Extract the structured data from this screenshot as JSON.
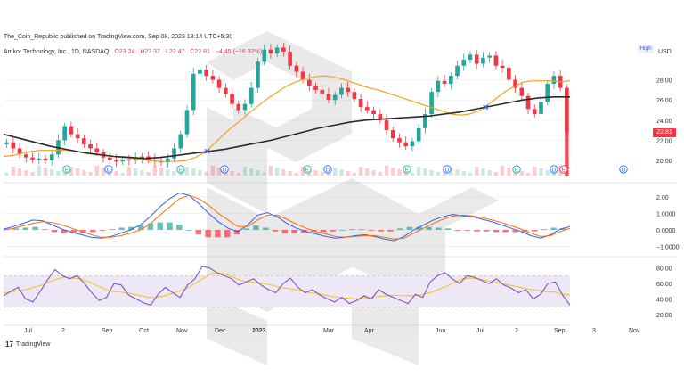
{
  "header": {
    "attribution": "The_Coin_Republic published on TradingView.com, Sep 08, 2023 13:14 UTC+5:30",
    "symbol": "Amkor Technology, Inc., 1D, NASDAQ",
    "open": "O23.24",
    "high": "H23.37",
    "low": "L22.47",
    "close": "C22.81",
    "change": "−4.45 (−16.32%)",
    "hl_badge": "High",
    "currency": "USD",
    "last_price": "22.81"
  },
  "branding": {
    "logo": "17",
    "name": "TradingView"
  },
  "colors": {
    "up": "#26a69a",
    "down": "#f23645",
    "ma_short": "#f7a01d",
    "ma_long": "#2b2b2b",
    "macd": "#2962ff",
    "signal": "#ff6d00",
    "rsi": "#7e57c2",
    "rsi_ma": "#f0c419",
    "rsi_band": "#ede7f6",
    "event": "#2962ff",
    "earnings": "#f23645"
  },
  "chart_data": [
    {
      "type": "candlestick",
      "series": [
        {
          "name": "price",
          "values": [
            21.8,
            21.2,
            20.6,
            20.3,
            20.1,
            20.2,
            20.0,
            20.6,
            22.0,
            23.4,
            22.6,
            22.2,
            21.6,
            21.2,
            20.8,
            20.3,
            20.0,
            19.9,
            20.1,
            20.0,
            20.2,
            20.4,
            20.1,
            19.9,
            19.8,
            20.2,
            21.2,
            22.6,
            25.0,
            28.6,
            29.0,
            28.4,
            28.0,
            27.2,
            26.6,
            25.6,
            25.0,
            25.6,
            27.2,
            29.8,
            31.0,
            30.6,
            31.2,
            30.8,
            29.4,
            28.8,
            28.0,
            27.4,
            27.0,
            26.6,
            26.0,
            26.5,
            27.2,
            26.8,
            26.1,
            25.3,
            25.0,
            24.6,
            24.0,
            23.0,
            22.2,
            21.8,
            21.4,
            21.9,
            23.2,
            24.6,
            26.8,
            27.9,
            27.6,
            28.4,
            29.4,
            30.0,
            30.5,
            29.6,
            30.2,
            30.4,
            29.4,
            29.2,
            28.0,
            27.2,
            26.4,
            25.1,
            24.6,
            25.8,
            27.6,
            28.4,
            27.2,
            22.81
          ]
        },
        {
          "name": "moving-average-short",
          "values": [
            20.4,
            20.5,
            20.7,
            20.9,
            21.0,
            21.0,
            21.0,
            21.0,
            20.9,
            20.7,
            20.6,
            20.5,
            20.4,
            20.3,
            20.2,
            20.1,
            20.0,
            19.9,
            19.9,
            19.9,
            20.0,
            20.3,
            20.8,
            21.6,
            22.5,
            23.3,
            24.0,
            24.8,
            25.5,
            26.2,
            26.8,
            27.4,
            27.8,
            28.1,
            28.3,
            28.4,
            28.3,
            28.1,
            27.8,
            27.5,
            27.2,
            27.0,
            26.7,
            26.4,
            26.1,
            25.8,
            25.5,
            25.2,
            24.9,
            24.6,
            24.5,
            24.6,
            24.9,
            25.5,
            26.2,
            26.9,
            27.4,
            27.8,
            27.9,
            27.9,
            27.9,
            27.8,
            27.9
          ]
        },
        {
          "name": "moving-average-long",
          "values": [
            22.6,
            22.2,
            21.8,
            21.4,
            21.1,
            20.8,
            20.6,
            20.4,
            20.3,
            20.2,
            20.3,
            20.5,
            20.7,
            20.9,
            21.1,
            21.4,
            21.7,
            22.0,
            22.4,
            22.8,
            23.2,
            23.5,
            23.8,
            24.0,
            24.1,
            24.2,
            24.3,
            24.4,
            24.6,
            24.8,
            25.1,
            25.4,
            25.7,
            26.0,
            26.2,
            26.3,
            26.3
          ]
        }
      ],
      "ylabel": "",
      "yticks": [
        20.0,
        22.0,
        24.0,
        26.0,
        28.0
      ],
      "ylim": [
        18.5,
        31.5
      ],
      "last_value": 22.81,
      "grid": true
    },
    {
      "type": "line",
      "series": [
        {
          "name": "macd",
          "values": [
            0.05,
            0.2,
            0.4,
            0.6,
            0.55,
            0.3,
            0.05,
            -0.15,
            -0.3,
            -0.45,
            -0.5,
            -0.4,
            -0.2,
            0.0,
            0.3,
            0.8,
            1.4,
            1.9,
            2.25,
            2.1,
            1.6,
            1.0,
            0.5,
            0.1,
            -0.1,
            0.3,
            0.9,
            1.05,
            0.8,
            0.4,
            0.1,
            -0.1,
            -0.25,
            -0.4,
            -0.5,
            -0.45,
            -0.35,
            -0.3,
            -0.4,
            -0.55,
            -0.65,
            -0.4,
            0.0,
            0.3,
            0.6,
            0.8,
            0.95,
            0.85,
            0.8,
            0.65,
            0.5,
            0.3,
            0.1,
            -0.1,
            -0.35,
            -0.5,
            -0.3,
            0.05,
            0.2
          ]
        },
        {
          "name": "signal",
          "values": [
            0.0,
            0.1,
            0.25,
            0.4,
            0.5,
            0.45,
            0.3,
            0.1,
            -0.1,
            -0.3,
            -0.45,
            -0.45,
            -0.35,
            -0.2,
            0.0,
            0.35,
            0.9,
            1.4,
            1.9,
            2.1,
            1.9,
            1.5,
            1.0,
            0.6,
            0.2,
            0.2,
            0.6,
            0.9,
            0.9,
            0.65,
            0.35,
            0.1,
            -0.1,
            -0.25,
            -0.4,
            -0.45,
            -0.4,
            -0.35,
            -0.35,
            -0.45,
            -0.55,
            -0.5,
            -0.2,
            0.1,
            0.4,
            0.65,
            0.85,
            0.9,
            0.85,
            0.75,
            0.6,
            0.45,
            0.25,
            0.05,
            -0.2,
            -0.4,
            -0.35,
            -0.1,
            0.1
          ]
        }
      ],
      "yticks": [
        2.0,
        1.0,
        0.0,
        -1.0
      ],
      "ytick_labels": [
        "2.00",
        "1.0000",
        "0.0000",
        "−1.0000"
      ],
      "ylim": [
        -1.3,
        2.6
      ],
      "grid": true
    },
    {
      "type": "line",
      "series": [
        {
          "name": "rsi",
          "values": [
            44,
            50,
            55,
            40,
            36,
            50,
            65,
            78,
            70,
            66,
            70,
            60,
            48,
            38,
            42,
            60,
            58,
            45,
            40,
            35,
            32,
            46,
            55,
            48,
            42,
            58,
            66,
            82,
            80,
            74,
            70,
            66,
            58,
            62,
            66,
            58,
            52,
            48,
            60,
            67,
            55,
            48,
            52,
            45,
            40,
            36,
            42,
            34,
            38,
            44,
            40,
            52,
            46,
            42,
            38,
            34,
            46,
            42,
            62,
            70,
            74,
            66,
            60,
            70,
            68,
            64,
            60,
            66,
            58,
            54,
            48,
            52,
            40,
            46,
            60,
            62,
            45,
            32
          ]
        },
        {
          "name": "rsi-ma",
          "values": [
            48,
            49,
            51,
            52,
            55,
            58,
            62,
            66,
            68,
            67,
            66,
            63,
            58,
            54,
            50,
            49,
            48,
            46,
            44,
            42,
            42,
            44,
            47,
            50,
            54,
            60,
            66,
            72,
            74,
            72,
            68,
            64,
            62,
            61,
            60,
            58,
            55,
            54,
            52,
            50,
            48,
            47,
            45,
            43,
            42,
            41,
            40,
            41,
            42,
            43,
            44,
            45,
            44,
            44,
            44,
            46,
            49,
            53,
            57,
            62,
            66,
            67,
            66,
            64,
            62,
            60,
            58,
            56,
            54,
            52,
            51,
            49,
            49,
            46,
            45
          ]
        }
      ],
      "yticks": [
        80.0,
        60.0,
        40.0,
        20.0
      ],
      "ylim": [
        14,
        90
      ],
      "band": [
        30,
        70
      ],
      "grid": true
    }
  ],
  "x_axis": {
    "tick_labels": [
      "Jul",
      "2",
      "Sep",
      "Oct",
      "Nov",
      "Dec",
      "2023",
      "Mar",
      "Apr",
      "Jun",
      "Jul",
      "2",
      "Sep",
      "3",
      "Nov"
    ]
  },
  "events": {
    "markers": [
      {
        "label": "E",
        "kind": "earnings-past"
      },
      {
        "label": "D",
        "kind": "dividend"
      },
      {
        "label": "E",
        "kind": "earnings-past"
      },
      {
        "label": "D",
        "kind": "dividend"
      },
      {
        "label": "E",
        "kind": "earnings-past"
      },
      {
        "label": "D",
        "kind": "dividend"
      },
      {
        "label": "E",
        "kind": "earnings-past"
      },
      {
        "label": "D",
        "kind": "dividend"
      },
      {
        "label": "E",
        "kind": "earnings-past"
      },
      {
        "label": "D",
        "kind": "dividend"
      },
      {
        "label": "E",
        "kind": "earnings-past"
      },
      {
        "label": "D",
        "kind": "dividend"
      },
      {
        "label": "E",
        "kind": "earnings-past"
      },
      {
        "label": "D",
        "kind": "dividend"
      },
      {
        "label": "E",
        "kind": "earnings-upcoming"
      }
    ]
  }
}
